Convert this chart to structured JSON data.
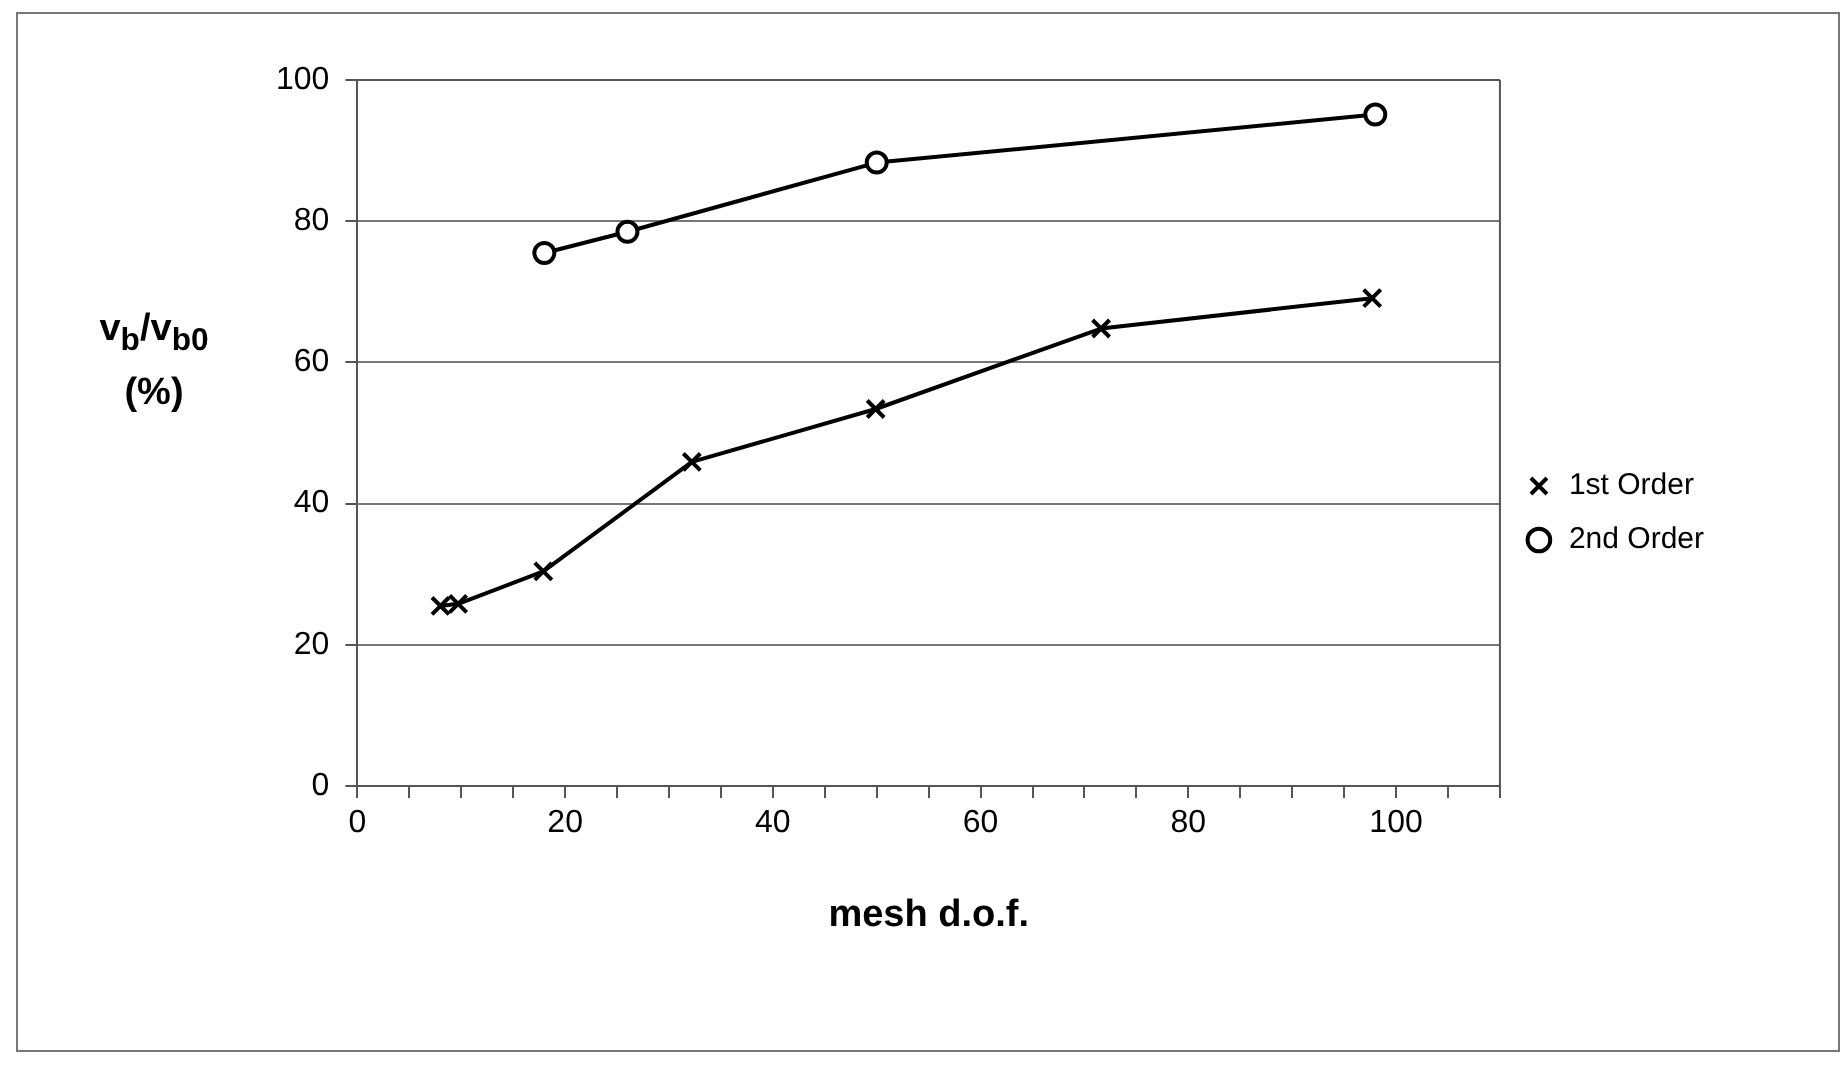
{
  "chart_data": {
    "type": "line",
    "xlabel": "mesh d.o.f.",
    "ylabel": "v$_{b}$/v$_{b0}$ (%)",
    "series": [
      {
        "name": "1st Order",
        "color": "#000000",
        "marker": "cross",
        "x": [
          8,
          9.7,
          17.9,
          32.2,
          49.9,
          71.6,
          97.7
        ],
        "values": [
          25.5,
          25.8,
          30.4,
          45.9,
          53.4,
          64.8,
          69.1
        ]
      },
      {
        "name": "2nd Order",
        "color": "#000000",
        "marker": "circle",
        "x": [
          18,
          26,
          50,
          98
        ],
        "values": [
          75.5,
          78.5,
          88.3,
          95.1
        ]
      }
    ],
    "xlim": [
      0,
      110
    ],
    "xticks": [
      0,
      {
        "value": 5,
        "label": null
      },
      {
        "value": 10,
        "label": null
      },
      {
        "value": 15,
        "label": null
      },
      20,
      {
        "value": 25,
        "label": null
      },
      {
        "value": 30,
        "label": null
      },
      {
        "value": 35,
        "label": null
      },
      40,
      {
        "value": 45,
        "label": null
      },
      {
        "value": 50,
        "label": null
      },
      {
        "value": 55,
        "label": null
      },
      60,
      {
        "value": 65,
        "label": null
      },
      {
        "value": 70,
        "label": null
      },
      {
        "value": 75,
        "label": null
      },
      80,
      {
        "value": 85,
        "label": null
      },
      {
        "value": 90,
        "label": null
      },
      {
        "value": 95,
        "label": null
      },
      100,
      {
        "value": 105,
        "label": null
      },
      {
        "value": 110,
        "label": null
      }
    ],
    "ylim": [
      0,
      100
    ],
    "yticks": [
      0,
      20,
      40,
      60,
      80,
      100
    ],
    "grid": "y",
    "legend": "right",
    "line_style": "solid"
  }
}
